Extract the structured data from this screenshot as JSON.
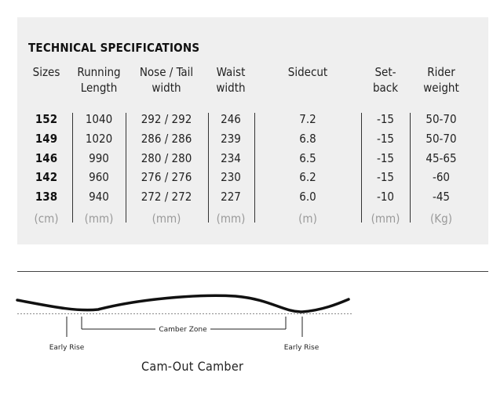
{
  "title": "TECHNICAL SPECIFICATIONS",
  "headers": [
    {
      "line1": "Sizes",
      "line2": ""
    },
    {
      "line1": "Running",
      "line2": "Length"
    },
    {
      "line1": "Nose / Tail",
      "line2": "width"
    },
    {
      "line1": "Waist",
      "line2": "width"
    },
    {
      "line1": "Sidecut",
      "line2": ""
    },
    {
      "line1": "Set-",
      "line2": "back"
    },
    {
      "line1": "Rider",
      "line2": "weight"
    }
  ],
  "rows": [
    [
      "152",
      "1040",
      "292 / 292",
      "246",
      "7.2",
      "-15",
      "50-70"
    ],
    [
      "149",
      "1020",
      "286 / 286",
      "239",
      "6.8",
      "-15",
      "50-70"
    ],
    [
      "146",
      "990",
      "280 / 280",
      "234",
      "6.5",
      "-15",
      "45-65"
    ],
    [
      "142",
      "960",
      "276 / 276",
      "230",
      "6.2",
      "-15",
      "-60"
    ],
    [
      "138",
      "940",
      "272 / 272",
      "227",
      "6.0",
      "-10",
      "-45"
    ]
  ],
  "units": [
    "(cm)",
    "(mm)",
    "(mm)",
    "(mm)",
    "(m)",
    "(mm)",
    "(Kg)"
  ],
  "diagram": {
    "camber_zone": "Camber Zone",
    "early_rise_left": "Early Rise",
    "early_rise_right": "Early Rise",
    "profile_name": "Cam-Out Camber"
  }
}
